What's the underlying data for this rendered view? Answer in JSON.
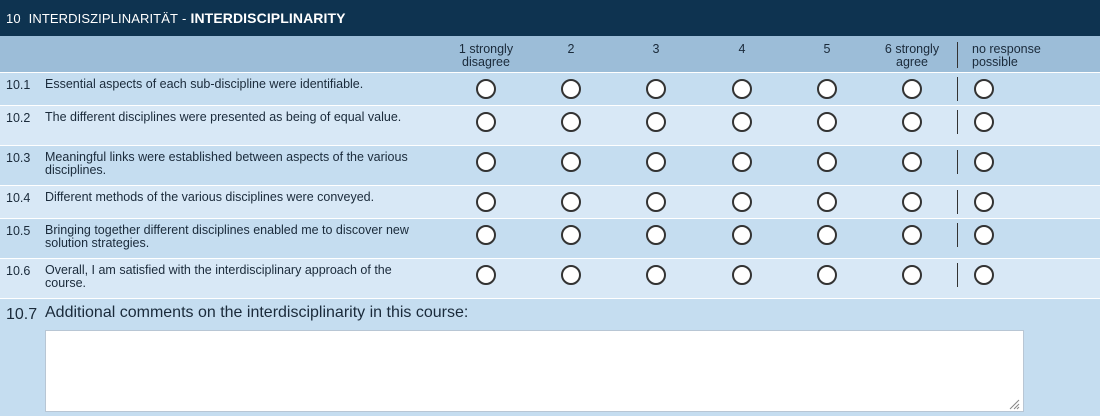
{
  "section": {
    "number": "10",
    "title_de": "INTERDISZIPLINARITÄT",
    "separator": "-",
    "title_en": "INTERDISCIPLINARITY"
  },
  "scale": {
    "options": [
      "1 strongly disagree",
      "2",
      "3",
      "4",
      "5",
      "6 strongly agree"
    ],
    "option_lines": [
      [
        "1 strongly",
        "disagree"
      ],
      [
        "2",
        ""
      ],
      [
        "3",
        ""
      ],
      [
        "4",
        ""
      ],
      [
        "5",
        ""
      ],
      [
        "6 strongly",
        "agree"
      ]
    ],
    "no_response_lines": [
      "no response",
      "possible"
    ]
  },
  "questions": [
    {
      "num": "10.1",
      "text": "Essential aspects of each sub-discipline were identifiable."
    },
    {
      "num": "10.2",
      "text": "The different disciplines were presented as being of equal value."
    },
    {
      "num": "10.3",
      "text": "Meaningful links were established between aspects of the various disciplines."
    },
    {
      "num": "10.4",
      "text": "Different methods of the various disciplines were conveyed."
    },
    {
      "num": "10.5",
      "text": "Bringing together different disciplines enabled me to discover new solution strategies."
    },
    {
      "num": "10.6",
      "text": "Overall, I am satisfied with the interdisciplinary approach of the course."
    }
  ],
  "comment": {
    "num": "10.7",
    "label": "Additional comments on the interdisciplinarity in this course:",
    "value": ""
  }
}
